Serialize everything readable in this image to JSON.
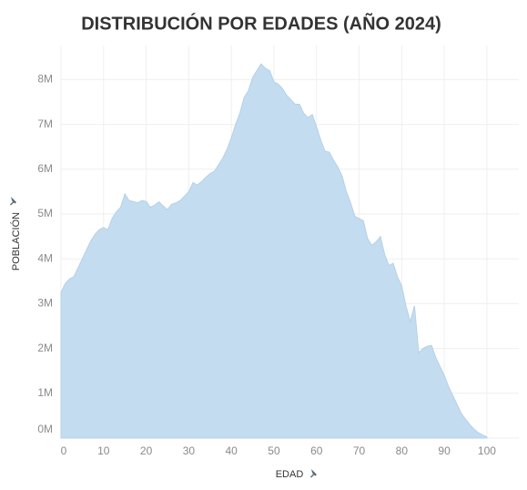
{
  "chart_data": {
    "type": "area",
    "title": "DISTRIBUCIÓN POR EDADES (AÑO 2024)",
    "xlabel": "EDAD",
    "ylabel": "POBLACIÓN",
    "x": [
      0,
      1,
      2,
      3,
      4,
      5,
      6,
      7,
      8,
      9,
      10,
      11,
      12,
      13,
      14,
      15,
      16,
      17,
      18,
      19,
      20,
      21,
      22,
      23,
      24,
      25,
      26,
      27,
      28,
      29,
      30,
      31,
      32,
      33,
      34,
      35,
      36,
      37,
      38,
      39,
      40,
      41,
      42,
      43,
      44,
      45,
      46,
      47,
      48,
      49,
      50,
      51,
      52,
      53,
      54,
      55,
      56,
      57,
      58,
      59,
      60,
      61,
      62,
      63,
      64,
      65,
      66,
      67,
      68,
      69,
      70,
      71,
      72,
      73,
      74,
      75,
      76,
      77,
      78,
      79,
      80,
      81,
      82,
      83,
      84,
      85,
      86,
      87,
      88,
      89,
      90,
      91,
      92,
      93,
      94,
      95,
      96,
      97,
      98,
      99,
      100
    ],
    "values": [
      3250000,
      3450000,
      3550000,
      3600000,
      3800000,
      4000000,
      4200000,
      4400000,
      4550000,
      4650000,
      4700000,
      4650000,
      4900000,
      5050000,
      5150000,
      5450000,
      5300000,
      5280000,
      5250000,
      5300000,
      5280000,
      5150000,
      5200000,
      5270000,
      5180000,
      5100000,
      5220000,
      5250000,
      5300000,
      5400000,
      5500000,
      5700000,
      5650000,
      5720000,
      5820000,
      5900000,
      5950000,
      6100000,
      6250000,
      6450000,
      6700000,
      7000000,
      7250000,
      7600000,
      7750000,
      8050000,
      8200000,
      8350000,
      8250000,
      8200000,
      7950000,
      7900000,
      7800000,
      7650000,
      7550000,
      7450000,
      7450000,
      7250000,
      7150000,
      7220000,
      6950000,
      6650000,
      6400000,
      6380000,
      6200000,
      6050000,
      5850000,
      5500000,
      5250000,
      4950000,
      4900000,
      4850000,
      4450000,
      4300000,
      4380000,
      4500000,
      4100000,
      3850000,
      3900000,
      3600000,
      3400000,
      2950000,
      2600000,
      2950000,
      1900000,
      2000000,
      2050000,
      2070000,
      1800000,
      1600000,
      1400000,
      1150000,
      950000,
      750000,
      550000,
      420000,
      300000,
      200000,
      120000,
      70000,
      30000
    ],
    "color": "#c4dcef",
    "xlim": [
      0,
      107.5
    ],
    "xticks": [
      0,
      10,
      20,
      30,
      40,
      50,
      60,
      70,
      80,
      90,
      100
    ],
    "ylim": [
      0,
      8760000
    ],
    "yticks": [
      {
        "value": 0,
        "label": "0M"
      },
      {
        "value": 1000000,
        "label": "1M"
      },
      {
        "value": 2000000,
        "label": "2M"
      },
      {
        "value": 3000000,
        "label": "3M"
      },
      {
        "value": 4000000,
        "label": "4M"
      },
      {
        "value": 5000000,
        "label": "5M"
      },
      {
        "value": 6000000,
        "label": "6M"
      },
      {
        "value": 7000000,
        "label": "7M"
      },
      {
        "value": 8000000,
        "label": "8M"
      }
    ],
    "grid": true
  }
}
